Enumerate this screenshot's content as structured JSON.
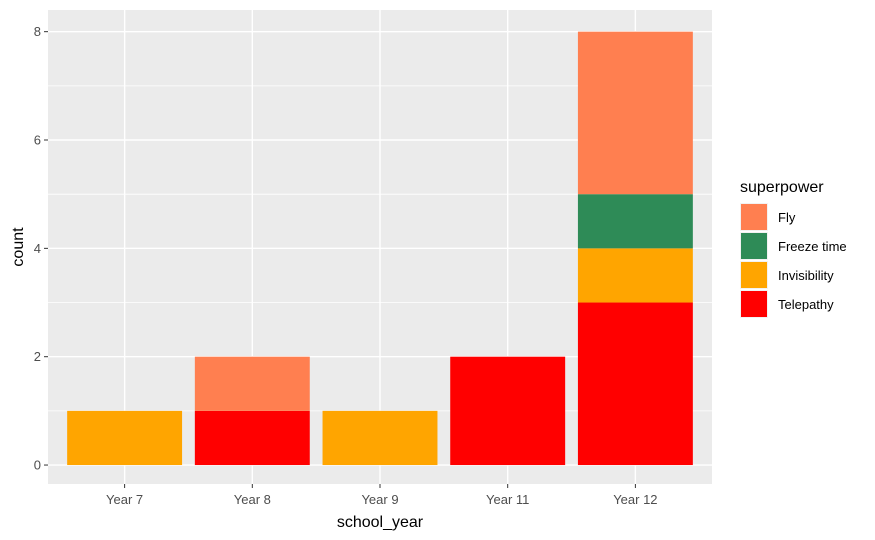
{
  "chart_data": {
    "type": "bar",
    "stacked": true,
    "categories": [
      "Year 7",
      "Year 8",
      "Year 9",
      "Year 11",
      "Year 12"
    ],
    "series": [
      {
        "name": "Fly",
        "color": "#FF7F50",
        "values": [
          0,
          1,
          0,
          0,
          3
        ]
      },
      {
        "name": "Freeze time",
        "color": "#2E8B57",
        "values": [
          0,
          0,
          0,
          0,
          1
        ]
      },
      {
        "name": "Invisibility",
        "color": "#FFA500",
        "values": [
          1,
          0,
          1,
          0,
          1
        ]
      },
      {
        "name": "Telepathy",
        "color": "#FF0000",
        "values": [
          0,
          1,
          0,
          2,
          3
        ]
      }
    ],
    "stack_order_bottom_to_top": [
      "Telepathy",
      "Invisibility",
      "Freeze time",
      "Fly"
    ],
    "xlabel": "school_year",
    "ylabel": "count",
    "ylim": [
      -0.35,
      8.4
    ],
    "yticks": [
      0,
      2,
      4,
      6,
      8
    ],
    "yticks_labels": [
      "0",
      "2",
      "4",
      "6",
      "8"
    ],
    "legend_title": "superpower",
    "legend_placement": "right",
    "grid": true,
    "panel_background": "#EBEBEB"
  }
}
